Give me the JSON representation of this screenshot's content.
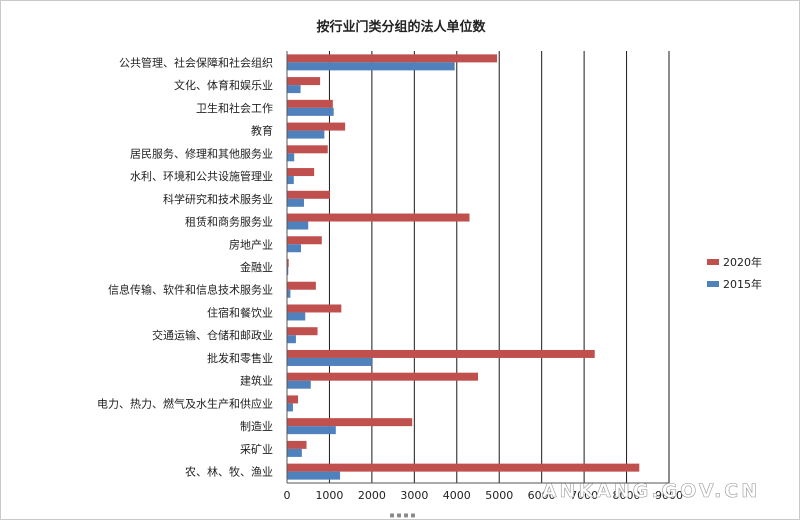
{
  "chart_data": {
    "type": "bar",
    "orientation": "horizontal",
    "title": "按行业门类分组的法人单位数",
    "categories": [
      "公共管理、社会保障和社会组织",
      "文化、体育和娱乐业",
      "卫生和社会工作",
      "教育",
      "居民服务、修理和其他服务业",
      "水利、环境和公共设施管理业",
      "科学研究和技术服务业",
      "租赁和商务服务业",
      "房地产业",
      "金融业",
      "信息传输、软件和信息技术服务业",
      "住宿和餐饮业",
      "交通运输、仓储和邮政业",
      "批发和零售业",
      "建筑业",
      "电力、热力、燃气及水生产和供应业",
      "制造业",
      "采矿业",
      "农、林、牧、渔业"
    ],
    "series": [
      {
        "name": "2020年",
        "color": "#c0504d",
        "values": [
          4950,
          780,
          1080,
          1370,
          960,
          640,
          1010,
          4300,
          820,
          40,
          680,
          1280,
          720,
          7250,
          4500,
          260,
          2950,
          460,
          8300
        ]
      },
      {
        "name": "2015年",
        "color": "#4f81bd",
        "values": [
          3950,
          320,
          1100,
          880,
          170,
          160,
          400,
          500,
          330,
          30,
          80,
          430,
          210,
          2000,
          560,
          140,
          1150,
          350,
          1250
        ]
      }
    ],
    "xticks": [
      "0",
      "1000",
      "2000",
      "3000",
      "4000",
      "5000",
      "6000",
      "7000",
      "8000",
      "9000"
    ],
    "xlim": [
      0,
      9000
    ],
    "grid": "vertical",
    "legend": "right"
  },
  "watermark": "ANKANG.GOV.CN",
  "handle_glyph": "▪▪▪▪"
}
